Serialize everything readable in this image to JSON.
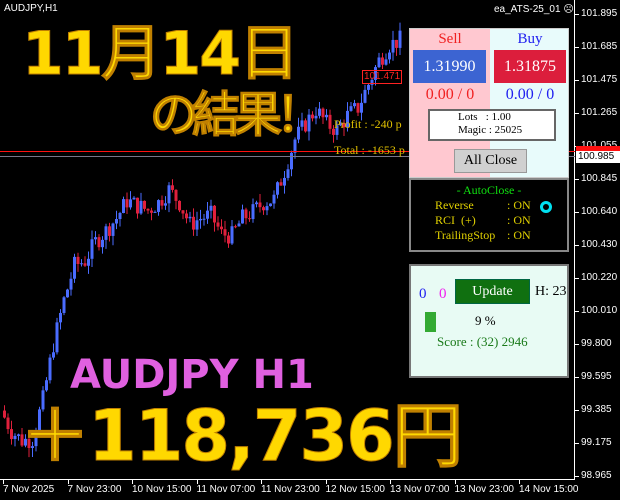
{
  "window": {
    "title": "AUDJPY,H1",
    "ea_name": "ea_ATS-25_01",
    "ea_status_icon": "sad-face-icon"
  },
  "price_axis": [
    "101.895",
    "101.685",
    "101.475",
    "101.265",
    "101.055",
    "100.845",
    "100.640",
    "100.430",
    "100.220",
    "100.010",
    "99.800",
    "99.595",
    "99.385",
    "99.175",
    "98.965"
  ],
  "current_price": "100.985",
  "time_axis": [
    "7 Nov 2025",
    "7 Nov 23:00",
    "10 Nov 15:00",
    "11 Nov 07:00",
    "11 Nov 23:00",
    "12 Nov 15:00",
    "13 Nov 07:00",
    "13 Nov 23:00",
    "14 Nov 15:00"
  ],
  "chart": {
    "price_max": 101.895,
    "price_min": 98.965,
    "closes": [
      99.38,
      99.25,
      99.19,
      99.2,
      99.45,
      99.8,
      100.08,
      100.3,
      100.33,
      100.45,
      100.52,
      100.6,
      100.71,
      100.68,
      100.65,
      100.7,
      100.78,
      100.7,
      100.56,
      100.6,
      100.62,
      100.5,
      100.49,
      100.6,
      100.64,
      100.7,
      100.72,
      100.9,
      101.1,
      101.2,
      101.29,
      101.2,
      101.16,
      101.25,
      101.3,
      101.45,
      101.6,
      101.7,
      101.73
    ],
    "bull_color": "#4a6cff",
    "bear_color": "#e0203c"
  },
  "chart_labels": {
    "profit": "Profit : -240 p",
    "total": "Total : -1653 p",
    "order_price": "101.471"
  },
  "overlay": {
    "date": "11月14日",
    "result": "の結果！",
    "symbol": "AUDJPY H1",
    "amount": "＋118,736円"
  },
  "panel": {
    "sell_label": "Sell",
    "buy_label": "Buy",
    "sell_price": "1.31990",
    "buy_price": "1.31875",
    "sell_pos": "0.00 / 0",
    "buy_pos": "0.00 / 0",
    "lots": "Lots   : 1.00",
    "magic": "Magic : 25025",
    "all_close": "All Close",
    "autoclose_title": "- AutoClose -",
    "settings": [
      {
        "name": "Reverse",
        "value": ": ON"
      },
      {
        "name": "RCI  (+)",
        "value": ": ON"
      },
      {
        "name": "TrailingStop",
        "value": ": ON"
      }
    ],
    "count_blue": "0",
    "count_pink": "0",
    "update": "Update",
    "hour": "H: 23",
    "progress_percent": 9,
    "progress_text": "9 %",
    "score": "Score : (32) 2946"
  }
}
